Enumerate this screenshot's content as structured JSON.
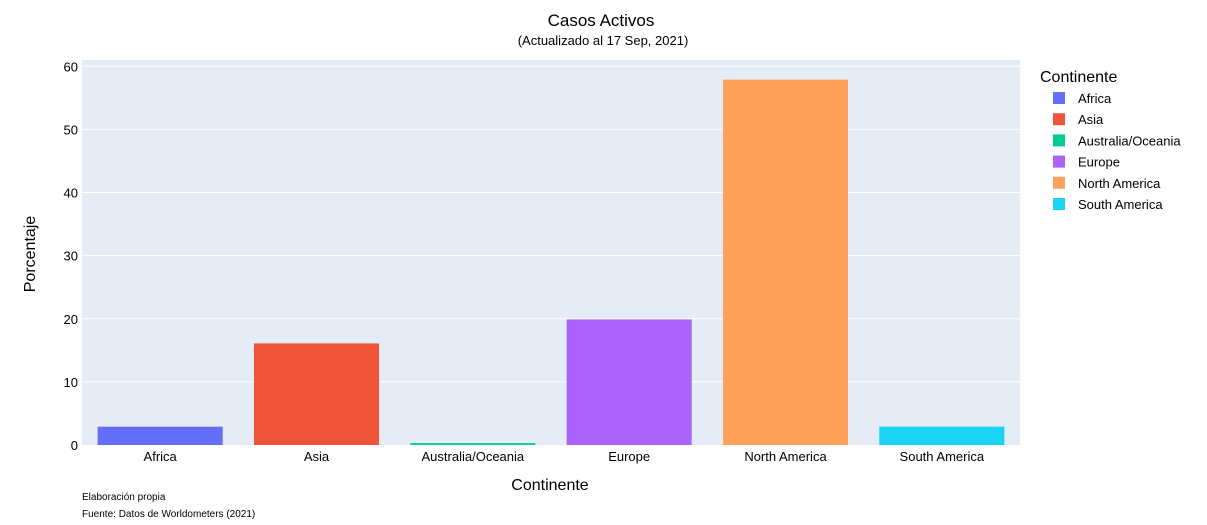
{
  "chart_data": {
    "type": "bar",
    "title": "Casos Activos",
    "subtitle": "(Actualizado al 17 Sep, 2021)",
    "xlabel": "Continente",
    "ylabel": "Porcentaje",
    "ylim": [
      0,
      61
    ],
    "yticks": [
      0,
      10,
      20,
      30,
      40,
      50,
      60
    ],
    "categories": [
      "Africa",
      "Asia",
      "Australia/Oceania",
      "Europe",
      "North America",
      "South America"
    ],
    "values": [
      2.9,
      16.1,
      0.3,
      19.9,
      57.9,
      2.9
    ],
    "colors": [
      "#636efa",
      "#ef553b",
      "#00cc96",
      "#ab63fa",
      "#ffa15a",
      "#19d3f3"
    ],
    "legend": {
      "title": "Continente",
      "placement": "right",
      "entries": [
        "Africa",
        "Asia",
        "Australia/Oceania",
        "Europe",
        "North America",
        "South America"
      ]
    },
    "grid": true,
    "plot_background": "#e5ecf6",
    "notes": [
      "Elaboración propia",
      "Fuente: Datos de Worldometers (2021)"
    ]
  }
}
